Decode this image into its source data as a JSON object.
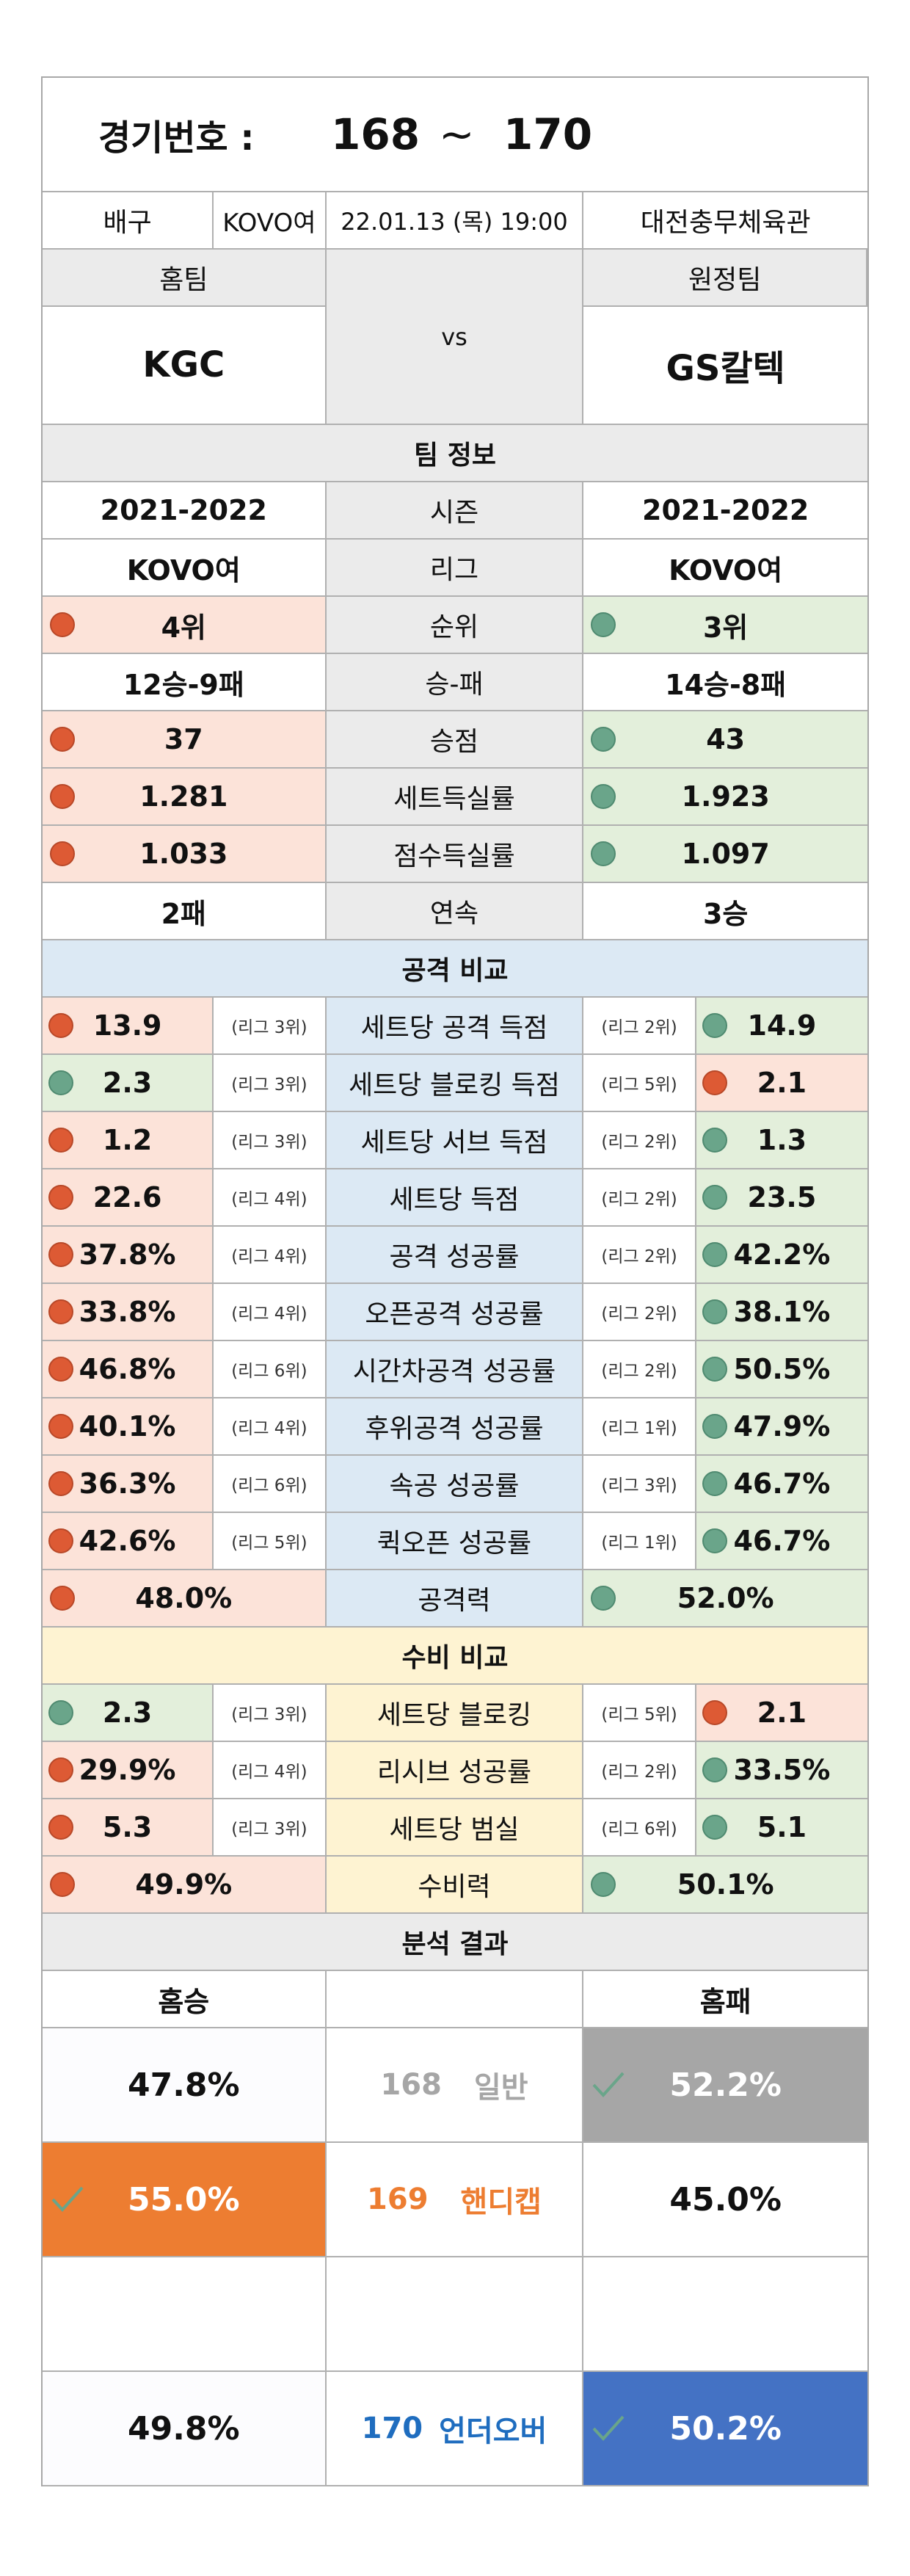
{
  "title": {
    "label": "경기번호 :",
    "start": "168",
    "sep": "~",
    "end": "170"
  },
  "match": {
    "sport": "배구",
    "league": "KOVO여",
    "datetime": "22.01.13 (목) 19:00",
    "venue": "대전충무체육관"
  },
  "teams": {
    "home_label": "홈팀",
    "away_label": "원정팀",
    "vs": "vs",
    "home": "KGC",
    "away": "GS칼텍"
  },
  "team_info": {
    "header": "팀 정보",
    "rows": [
      {
        "label": "시즌",
        "home": "2021-2022",
        "away": "2021-2022"
      },
      {
        "label": "리그",
        "home": "KOVO여",
        "away": "KOVO여"
      },
      {
        "label": "순위",
        "home": "4위",
        "away": "3위"
      },
      {
        "label": "승-패",
        "home": "12승-9패",
        "away": "14승-8패"
      },
      {
        "label": "승점",
        "home": "37",
        "away": "43"
      },
      {
        "label": "세트득실률",
        "home": "1.281",
        "away": "1.923"
      },
      {
        "label": "점수득실률",
        "home": "1.033",
        "away": "1.097"
      },
      {
        "label": "연속",
        "home": "2패",
        "away": "3승"
      }
    ]
  },
  "attack": {
    "header": "공격 비교",
    "rows": [
      {
        "label": "세트당 공격 득점",
        "home": "13.9",
        "home_rank": "(리그 3위)",
        "away": "14.9",
        "away_rank": "(리그 2위)"
      },
      {
        "label": "세트당 블로킹 득점",
        "home": "2.3",
        "home_rank": "(리그 3위)",
        "away": "2.1",
        "away_rank": "(리그 5위)"
      },
      {
        "label": "세트당 서브 득점",
        "home": "1.2",
        "home_rank": "(리그 3위)",
        "away": "1.3",
        "away_rank": "(리그 2위)"
      },
      {
        "label": "세트당 득점",
        "home": "22.6",
        "home_rank": "(리그 4위)",
        "away": "23.5",
        "away_rank": "(리그 2위)"
      },
      {
        "label": "공격 성공률",
        "home": "37.8%",
        "home_rank": "(리그 4위)",
        "away": "42.2%",
        "away_rank": "(리그 2위)"
      },
      {
        "label": "오픈공격 성공률",
        "home": "33.8%",
        "home_rank": "(리그 4위)",
        "away": "38.1%",
        "away_rank": "(리그 2위)"
      },
      {
        "label": "시간차공격 성공률",
        "home": "46.8%",
        "home_rank": "(리그 6위)",
        "away": "50.5%",
        "away_rank": "(리그 2위)"
      },
      {
        "label": "후위공격 성공률",
        "home": "40.1%",
        "home_rank": "(리그 4위)",
        "away": "47.9%",
        "away_rank": "(리그 1위)"
      },
      {
        "label": "속공 성공률",
        "home": "36.3%",
        "home_rank": "(리그 6위)",
        "away": "46.7%",
        "away_rank": "(리그 3위)"
      },
      {
        "label": "퀵오픈 성공률",
        "home": "42.6%",
        "home_rank": "(리그 5위)",
        "away": "46.7%",
        "away_rank": "(리그 1위)"
      }
    ],
    "power": {
      "label": "공격력",
      "home": "48.0%",
      "away": "52.0%"
    }
  },
  "defense": {
    "header": "수비 비교",
    "rows": [
      {
        "label": "세트당 블로킹",
        "home": "2.3",
        "home_rank": "(리그 3위)",
        "away": "2.1",
        "away_rank": "(리그 5위)"
      },
      {
        "label": "리시브 성공률",
        "home": "29.9%",
        "home_rank": "(리그 4위)",
        "away": "33.5%",
        "away_rank": "(리그 2위)"
      },
      {
        "label": "세트당 범실",
        "home": "5.3",
        "home_rank": "(리그 3위)",
        "away": "5.1",
        "away_rank": "(리그 6위)"
      }
    ],
    "power": {
      "label": "수비력",
      "home": "49.9%",
      "away": "50.1%"
    }
  },
  "analysis": {
    "header": "분석 결과",
    "home_label": "홈승",
    "away_label": "홈패",
    "games": [
      {
        "num": "168",
        "type": "일반",
        "home": "47.8%",
        "away": "52.2%"
      },
      {
        "num": "169",
        "type": "핸디캡",
        "home": "55.0%",
        "away": "45.0%"
      },
      {
        "num": "170",
        "type": "언더오버",
        "home": "49.8%",
        "away": "50.2%"
      }
    ]
  },
  "colors": {
    "home_dot_better": "#6aa58a",
    "dot_worse": "#dd5a34",
    "red_fill": "#fce3d9",
    "green_fill": "#e3efdb",
    "attack_fill": "#dce9f4",
    "defense_fill": "#fef3d2",
    "pick_general": "#a6a6a6",
    "pick_handicap": "#ed7d31",
    "pick_underover": "#4472c4",
    "text_general": "#a6a6a6",
    "text_handicap": "#ed7d31",
    "text_underover": "#1f6dbf"
  },
  "icons": {
    "dot": "status-dot-icon",
    "check": "check-icon"
  }
}
